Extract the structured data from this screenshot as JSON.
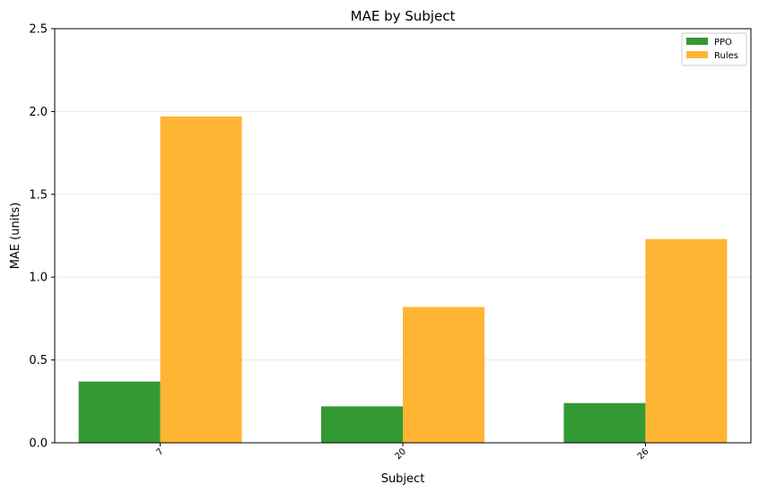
{
  "chart_data": {
    "type": "bar",
    "title": "MAE by Subject",
    "xlabel": "Subject",
    "ylabel": "MAE (units)",
    "categories": [
      "7",
      "20",
      "26"
    ],
    "series": [
      {
        "name": "PPO",
        "values": [
          0.37,
          0.22,
          0.24
        ],
        "color": "#339933"
      },
      {
        "name": "Rules",
        "values": [
          1.97,
          0.82,
          1.23
        ],
        "color": "#ffb534"
      }
    ],
    "ylim": [
      0,
      2.5
    ],
    "yticks": [
      "0.0",
      "0.5",
      "1.0",
      "1.5",
      "2.0",
      "2.5"
    ],
    "grid": "horizontal",
    "legend_position": "top-right"
  }
}
